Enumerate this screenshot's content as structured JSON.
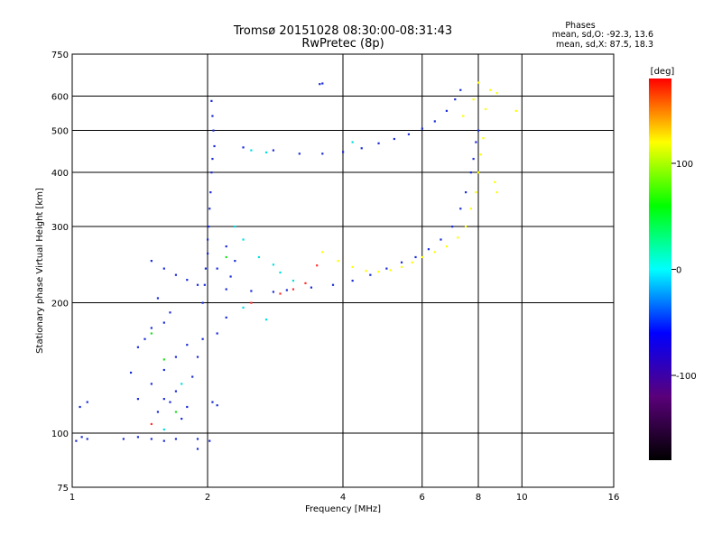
{
  "header": {
    "title_line1": "Tromsø 20151028 08:30:00-08:31:43",
    "title_line2": "RwPretec (8p)"
  },
  "stats": {
    "heading": "Phases",
    "line_o": "mean, sd,O: -92.3, 13.6",
    "line_x": "mean, sd,X:  87.5, 18.3"
  },
  "chart_data": {
    "type": "scatter",
    "title": "Tromsø 20151028 08:30:00-08:31:43",
    "subtitle": "RwPretec (8p)",
    "xlabel": "Frequency [MHz]",
    "ylabel": "Stationary phase Virtual Height [km]",
    "xscale": "log2",
    "yscale": "log",
    "xlim": [
      1,
      16
    ],
    "ylim": [
      75,
      750
    ],
    "grid": true,
    "x_ticks": [
      1,
      2,
      4,
      6,
      8,
      10,
      16
    ],
    "x_tick_labels": [
      "1",
      "2",
      "4",
      "6",
      "8",
      "10",
      "16"
    ],
    "y_ticks": [
      75,
      100,
      200,
      300,
      400,
      500,
      600,
      750
    ],
    "y_tick_labels": [
      "75",
      "100",
      "200",
      "300",
      "400",
      "500",
      "600",
      "750"
    ],
    "colorbar": {
      "label": "[deg]",
      "min": -180,
      "max": 180,
      "ticks": [
        -100,
        0,
        100
      ],
      "tick_labels": [
        "-100",
        "0",
        "100"
      ],
      "colors": [
        "#000000",
        "#5a007a",
        "#0000ff",
        "#00ffff",
        "#00ff00",
        "#ffff00",
        "#ff0000"
      ]
    },
    "series": [
      {
        "color": "#1a2cd8",
        "points": [
          [
            1.02,
            96
          ],
          [
            1.05,
            98
          ],
          [
            1.08,
            97
          ],
          [
            1.04,
            115
          ],
          [
            1.08,
            118
          ],
          [
            1.3,
            97
          ],
          [
            1.4,
            98
          ],
          [
            1.5,
            97
          ],
          [
            1.6,
            96
          ],
          [
            1.7,
            97
          ],
          [
            1.9,
            97
          ],
          [
            2.02,
            96
          ],
          [
            1.9,
            92
          ],
          [
            1.35,
            138
          ],
          [
            1.4,
            158
          ],
          [
            1.45,
            165
          ],
          [
            1.5,
            175
          ],
          [
            1.4,
            120
          ],
          [
            1.5,
            130
          ],
          [
            1.6,
            140
          ],
          [
            1.7,
            150
          ],
          [
            1.8,
            160
          ],
          [
            1.6,
            120
          ],
          [
            1.7,
            125
          ],
          [
            1.55,
            112
          ],
          [
            1.65,
            118
          ],
          [
            1.85,
            135
          ],
          [
            1.9,
            150
          ],
          [
            1.95,
            165
          ],
          [
            2.05,
            118
          ],
          [
            2.1,
            116
          ],
          [
            1.8,
            115
          ],
          [
            1.75,
            108
          ]
        ]
      },
      {
        "color": "#1a2cd8",
        "points": [
          [
            1.95,
            200
          ],
          [
            1.97,
            220
          ],
          [
            1.98,
            240
          ],
          [
            2.0,
            260
          ],
          [
            2.0,
            280
          ],
          [
            2.01,
            300
          ],
          [
            2.02,
            330
          ],
          [
            2.03,
            360
          ],
          [
            2.04,
            400
          ],
          [
            2.05,
            430
          ],
          [
            2.07,
            460
          ],
          [
            2.06,
            500
          ],
          [
            2.05,
            540
          ],
          [
            2.04,
            585
          ],
          [
            2.1,
            170
          ],
          [
            2.2,
            185
          ],
          [
            2.25,
            230
          ],
          [
            2.3,
            250
          ],
          [
            2.1,
            240
          ],
          [
            2.2,
            270
          ]
        ]
      },
      {
        "color": "#1a2cd8",
        "points": [
          [
            1.5,
            250
          ],
          [
            1.6,
            240
          ],
          [
            1.7,
            232
          ],
          [
            1.8,
            226
          ],
          [
            1.9,
            220
          ],
          [
            2.2,
            215
          ],
          [
            2.5,
            213
          ],
          [
            2.8,
            212
          ],
          [
            3.0,
            214
          ],
          [
            3.4,
            217
          ],
          [
            3.8,
            220
          ],
          [
            4.2,
            225
          ],
          [
            4.6,
            232
          ],
          [
            5.0,
            240
          ],
          [
            5.4,
            248
          ],
          [
            5.8,
            255
          ],
          [
            6.2,
            266
          ],
          [
            6.6,
            280
          ],
          [
            7.0,
            300
          ],
          [
            7.3,
            330
          ],
          [
            7.5,
            360
          ],
          [
            7.7,
            400
          ],
          [
            7.8,
            430
          ],
          [
            7.9,
            470
          ],
          [
            8.0,
            500
          ]
        ]
      },
      {
        "color": "#1a2cd8",
        "points": [
          [
            2.4,
            457
          ],
          [
            2.8,
            450
          ],
          [
            3.2,
            442
          ],
          [
            3.6,
            442
          ],
          [
            4.0,
            446
          ],
          [
            4.4,
            455
          ],
          [
            4.8,
            467
          ],
          [
            5.2,
            478
          ],
          [
            5.6,
            490
          ],
          [
            6.0,
            505
          ],
          [
            6.4,
            525
          ],
          [
            6.8,
            555
          ],
          [
            7.1,
            590
          ],
          [
            7.3,
            620
          ],
          [
            3.55,
            640
          ],
          [
            3.6,
            642
          ],
          [
            1.6,
            180
          ],
          [
            1.65,
            190
          ],
          [
            1.55,
            205
          ]
        ]
      },
      {
        "color": "#ffff00",
        "points": [
          [
            3.6,
            262
          ],
          [
            3.9,
            250
          ],
          [
            4.2,
            242
          ],
          [
            4.5,
            237
          ],
          [
            4.8,
            236
          ],
          [
            5.1,
            238
          ],
          [
            5.4,
            242
          ],
          [
            5.7,
            248
          ],
          [
            6.0,
            255
          ],
          [
            6.4,
            262
          ],
          [
            6.8,
            270
          ],
          [
            7.2,
            283
          ],
          [
            7.5,
            300
          ],
          [
            7.7,
            330
          ],
          [
            7.9,
            360
          ],
          [
            8.0,
            400
          ],
          [
            8.1,
            440
          ],
          [
            8.2,
            480
          ],
          [
            8.3,
            560
          ],
          [
            8.5,
            620
          ],
          [
            8.8,
            610
          ],
          [
            7.4,
            540
          ],
          [
            7.8,
            590
          ],
          [
            8.0,
            645
          ],
          [
            8.7,
            380
          ],
          [
            8.8,
            360
          ],
          [
            9.7,
            555
          ]
        ]
      },
      {
        "color": "#00e0e0",
        "points": [
          [
            2.5,
            450
          ],
          [
            2.7,
            445
          ],
          [
            2.6,
            255
          ],
          [
            2.8,
            245
          ],
          [
            2.9,
            235
          ],
          [
            3.1,
            225
          ],
          [
            2.3,
            300
          ],
          [
            2.4,
            280
          ],
          [
            1.6,
            102
          ],
          [
            1.75,
            130
          ],
          [
            2.4,
            195
          ],
          [
            2.7,
            183
          ],
          [
            4.2,
            470
          ]
        ]
      },
      {
        "color": "#ff3030",
        "points": [
          [
            2.9,
            210
          ],
          [
            3.1,
            215
          ],
          [
            3.3,
            222
          ],
          [
            3.5,
            244
          ],
          [
            2.5,
            200
          ],
          [
            1.5,
            105
          ]
        ]
      },
      {
        "color": "#20e020",
        "points": [
          [
            1.5,
            170
          ],
          [
            1.6,
            148
          ],
          [
            1.7,
            112
          ],
          [
            2.2,
            255
          ]
        ]
      }
    ]
  }
}
